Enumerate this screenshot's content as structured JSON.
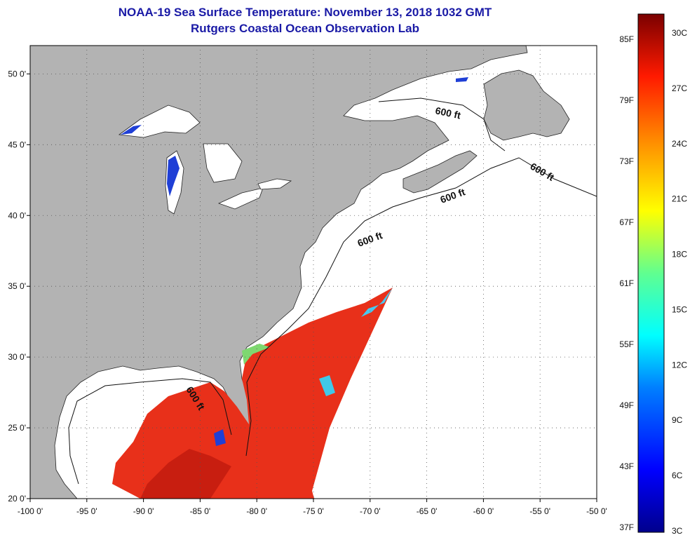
{
  "title": {
    "line1": "NOAA-19 Sea Surface Temperature:  November 13, 2018 1032 GMT",
    "line2": "Rutgers Coastal Ocean Observation Lab"
  },
  "axes": {
    "lon_ticks": [
      "-100 0'",
      "-95 0'",
      "-90 0'",
      "-85 0'",
      "-80 0'",
      "-75 0'",
      "-70 0'",
      "-65 0'",
      "-60 0'",
      "-55 0'",
      "-50 0'"
    ],
    "lat_ticks": [
      "50 0'",
      "45 0'",
      "40 0'",
      "35 0'",
      "30 0'",
      "25 0'",
      "20 0'"
    ],
    "lon_range": [
      -100,
      -50
    ],
    "lat_range": [
      20,
      52
    ]
  },
  "contour_labels": [
    "600 ft",
    "600 ft",
    "600 ft",
    "600 ft",
    "600 ft"
  ],
  "colorbar": {
    "fahrenheit_labels": [
      "85F",
      "79F",
      "73F",
      "67F",
      "61F",
      "55F",
      "49F",
      "43F",
      "37F"
    ],
    "celsius_labels": [
      "30C",
      "27C",
      "24C",
      "21C",
      "18C",
      "15C",
      "12C",
      "9C",
      "6C",
      "3C"
    ],
    "range_c": [
      3,
      31
    ]
  },
  "colors": {
    "land": "#b3b3b3",
    "ocean": "#ffffff",
    "title": "#1a1aa6",
    "sst_warm": "#e8301a",
    "sst_cool": "#1f3fd6"
  }
}
